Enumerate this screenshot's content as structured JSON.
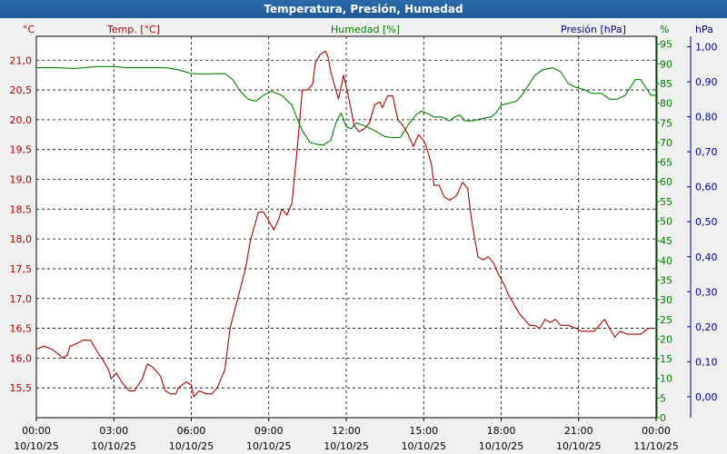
{
  "window": {
    "title": "Temperatura, Presión, Humedad"
  },
  "chart_data": {
    "type": "line",
    "title": "Temperatura, Presión, Humedad",
    "grid": true,
    "colors": {
      "temperature": "#b00000",
      "humidity": "#008000",
      "pressure": "#0000a0"
    },
    "axes": {
      "temperature": {
        "unit": "°C",
        "label": "Temp. [°C]",
        "ylim": [
          15.0,
          21.4
        ],
        "ticks": [
          "15,5",
          "16,0",
          "16,5",
          "17,0",
          "17,5",
          "18,0",
          "18,5",
          "19,0",
          "19,5",
          "20,0",
          "20,5",
          "21,0"
        ]
      },
      "humidity": {
        "unit": "%",
        "label": "Humedad [%]",
        "ylim": [
          0,
          97
        ],
        "ticks": [
          "0",
          "5",
          "10",
          "15",
          "20",
          "25",
          "30",
          "35",
          "40",
          "45",
          "50",
          "55",
          "60",
          "65",
          "70",
          "75",
          "80",
          "85",
          "90",
          "95"
        ]
      },
      "pressure": {
        "unit": "hPa",
        "label": "Presión [hPa]",
        "ylim": [
          -0.06,
          1.03
        ],
        "ticks": [
          "0,00",
          "0,10",
          "0,20",
          "0,30",
          "0,40",
          "0,50",
          "0,60",
          "0,70",
          "0,80",
          "0,90",
          "1,00"
        ]
      },
      "x": {
        "range_hours": [
          0,
          24
        ],
        "ticks": [
          {
            "time": "00:00",
            "date": "10/10/25"
          },
          {
            "time": "03:00",
            "date": "10/10/25"
          },
          {
            "time": "06:00",
            "date": "10/10/25"
          },
          {
            "time": "09:00",
            "date": "10/10/25"
          },
          {
            "time": "12:00",
            "date": "10/10/25"
          },
          {
            "time": "15:00",
            "date": "10/10/25"
          },
          {
            "time": "18:00",
            "date": "10/10/25"
          },
          {
            "time": "21:00",
            "date": "10/10/25"
          },
          {
            "time": "00:00",
            "date": "11/10/25"
          }
        ]
      }
    },
    "series": [
      {
        "name": "Temp. [°C]",
        "axis": "temperature",
        "points": [
          [
            0,
            16.15
          ],
          [
            0.3,
            16.2
          ],
          [
            0.6,
            16.15
          ],
          [
            0.9,
            16.05
          ],
          [
            1.0,
            16.0
          ],
          [
            1.2,
            16.05
          ],
          [
            1.3,
            16.2
          ],
          [
            1.6,
            16.25
          ],
          [
            1.8,
            16.3
          ],
          [
            2.1,
            16.3
          ],
          [
            2.3,
            16.15
          ],
          [
            2.6,
            15.95
          ],
          [
            2.8,
            15.8
          ],
          [
            2.9,
            15.65
          ],
          [
            3.1,
            15.75
          ],
          [
            3.3,
            15.6
          ],
          [
            3.6,
            15.45
          ],
          [
            3.8,
            15.45
          ],
          [
            4.1,
            15.65
          ],
          [
            4.3,
            15.9
          ],
          [
            4.5,
            15.85
          ],
          [
            4.8,
            15.7
          ],
          [
            5.0,
            15.45
          ],
          [
            5.2,
            15.4
          ],
          [
            5.4,
            15.4
          ],
          [
            5.5,
            15.5
          ],
          [
            5.8,
            15.6
          ],
          [
            6.0,
            15.55
          ],
          [
            6.1,
            15.35
          ],
          [
            6.3,
            15.45
          ],
          [
            6.6,
            15.4
          ],
          [
            6.8,
            15.4
          ],
          [
            7.0,
            15.5
          ],
          [
            7.3,
            15.8
          ],
          [
            7.5,
            16.5
          ],
          [
            7.8,
            17.0
          ],
          [
            8.1,
            17.5
          ],
          [
            8.3,
            18.0
          ],
          [
            8.6,
            18.45
          ],
          [
            8.8,
            18.45
          ],
          [
            9.0,
            18.3
          ],
          [
            9.2,
            18.15
          ],
          [
            9.4,
            18.35
          ],
          [
            9.5,
            18.5
          ],
          [
            9.7,
            18.4
          ],
          [
            9.9,
            18.6
          ],
          [
            10.1,
            19.5
          ],
          [
            10.3,
            20.5
          ],
          [
            10.5,
            20.5
          ],
          [
            10.7,
            20.6
          ],
          [
            10.8,
            20.95
          ],
          [
            11.0,
            21.1
          ],
          [
            11.2,
            21.15
          ],
          [
            11.3,
            21.05
          ],
          [
            11.4,
            20.8
          ],
          [
            11.6,
            20.5
          ],
          [
            11.7,
            20.35
          ],
          [
            11.9,
            20.75
          ],
          [
            12.0,
            20.55
          ],
          [
            12.2,
            20.15
          ],
          [
            12.3,
            19.9
          ],
          [
            12.5,
            19.8
          ],
          [
            12.7,
            19.85
          ],
          [
            12.9,
            19.95
          ],
          [
            13.0,
            20.1
          ],
          [
            13.1,
            20.25
          ],
          [
            13.3,
            20.3
          ],
          [
            13.4,
            20.2
          ],
          [
            13.6,
            20.4
          ],
          [
            13.8,
            20.4
          ],
          [
            13.9,
            20.2
          ],
          [
            14.0,
            20.0
          ],
          [
            14.2,
            19.9
          ],
          [
            14.4,
            19.75
          ],
          [
            14.6,
            19.55
          ],
          [
            14.8,
            19.75
          ],
          [
            15.0,
            19.65
          ],
          [
            15.1,
            19.55
          ],
          [
            15.3,
            19.25
          ],
          [
            15.4,
            18.9
          ],
          [
            15.6,
            18.9
          ],
          [
            15.8,
            18.7
          ],
          [
            16.0,
            18.65
          ],
          [
            16.2,
            18.7
          ],
          [
            16.3,
            18.75
          ],
          [
            16.5,
            18.95
          ],
          [
            16.7,
            18.85
          ],
          [
            16.8,
            18.5
          ],
          [
            16.9,
            18.2
          ],
          [
            17.1,
            17.7
          ],
          [
            17.3,
            17.65
          ],
          [
            17.5,
            17.7
          ],
          [
            17.7,
            17.6
          ],
          [
            17.9,
            17.4
          ],
          [
            18.1,
            17.25
          ],
          [
            18.3,
            17.05
          ],
          [
            18.5,
            16.9
          ],
          [
            18.7,
            16.75
          ],
          [
            18.9,
            16.65
          ],
          [
            19.1,
            16.55
          ],
          [
            19.3,
            16.55
          ],
          [
            19.5,
            16.5
          ],
          [
            19.7,
            16.65
          ],
          [
            19.9,
            16.6
          ],
          [
            20.1,
            16.65
          ],
          [
            20.3,
            16.55
          ],
          [
            20.6,
            16.55
          ],
          [
            20.9,
            16.5
          ],
          [
            21.1,
            16.45
          ],
          [
            21.3,
            16.45
          ],
          [
            21.6,
            16.45
          ],
          [
            21.8,
            16.55
          ],
          [
            22.0,
            16.65
          ],
          [
            22.2,
            16.5
          ],
          [
            22.4,
            16.35
          ],
          [
            22.6,
            16.45
          ],
          [
            22.9,
            16.4
          ],
          [
            23.1,
            16.4
          ],
          [
            23.4,
            16.4
          ],
          [
            23.7,
            16.5
          ],
          [
            23.9,
            16.5
          ]
        ]
      },
      {
        "name": "Humedad [%]",
        "axis": "humidity",
        "points": [
          [
            0,
            89
          ],
          [
            0.8,
            89
          ],
          [
            1.5,
            88.8
          ],
          [
            2.3,
            89.3
          ],
          [
            3.0,
            89.3
          ],
          [
            3.5,
            89
          ],
          [
            4.3,
            89
          ],
          [
            5.0,
            89
          ],
          [
            5.5,
            88.5
          ],
          [
            6.0,
            87.5
          ],
          [
            6.5,
            87.4
          ],
          [
            7.0,
            87.5
          ],
          [
            7.3,
            87.5
          ],
          [
            7.6,
            86
          ],
          [
            7.9,
            83
          ],
          [
            8.2,
            81
          ],
          [
            8.5,
            80.5
          ],
          [
            8.8,
            82
          ],
          [
            9.1,
            83
          ],
          [
            9.5,
            82
          ],
          [
            9.9,
            79.5
          ],
          [
            10.1,
            76
          ],
          [
            10.3,
            73
          ],
          [
            10.6,
            70
          ],
          [
            10.9,
            69.5
          ],
          [
            11.1,
            69.3
          ],
          [
            11.4,
            70.5
          ],
          [
            11.6,
            75
          ],
          [
            11.8,
            77.5
          ],
          [
            12.0,
            74
          ],
          [
            12.2,
            73.5
          ],
          [
            12.4,
            75
          ],
          [
            12.8,
            74
          ],
          [
            13.1,
            73
          ],
          [
            13.5,
            71.5
          ],
          [
            13.8,
            71.2
          ],
          [
            14.1,
            71.3
          ],
          [
            14.4,
            74.5
          ],
          [
            14.7,
            77
          ],
          [
            14.9,
            78
          ],
          [
            15.1,
            77.5
          ],
          [
            15.4,
            76.5
          ],
          [
            15.7,
            76.5
          ],
          [
            16.0,
            75.5
          ],
          [
            16.2,
            76.5
          ],
          [
            16.4,
            77
          ],
          [
            16.6,
            75.5
          ],
          [
            16.9,
            75.5
          ],
          [
            17.2,
            76
          ],
          [
            17.6,
            76.5
          ],
          [
            17.8,
            77.5
          ],
          [
            18.0,
            79.5
          ],
          [
            18.3,
            80
          ],
          [
            18.6,
            80.5
          ],
          [
            18.8,
            82
          ],
          [
            19.0,
            84
          ],
          [
            19.3,
            87
          ],
          [
            19.6,
            88.5
          ],
          [
            20.0,
            89
          ],
          [
            20.3,
            88
          ],
          [
            20.6,
            85
          ],
          [
            20.9,
            84
          ],
          [
            21.2,
            83.5
          ],
          [
            21.5,
            82.5
          ],
          [
            21.9,
            82.5
          ],
          [
            22.2,
            81
          ],
          [
            22.5,
            81
          ],
          [
            22.8,
            82
          ],
          [
            23.0,
            84
          ],
          [
            23.2,
            86
          ],
          [
            23.4,
            86
          ],
          [
            23.6,
            84
          ],
          [
            23.8,
            82
          ],
          [
            24.0,
            82
          ]
        ]
      }
    ]
  }
}
